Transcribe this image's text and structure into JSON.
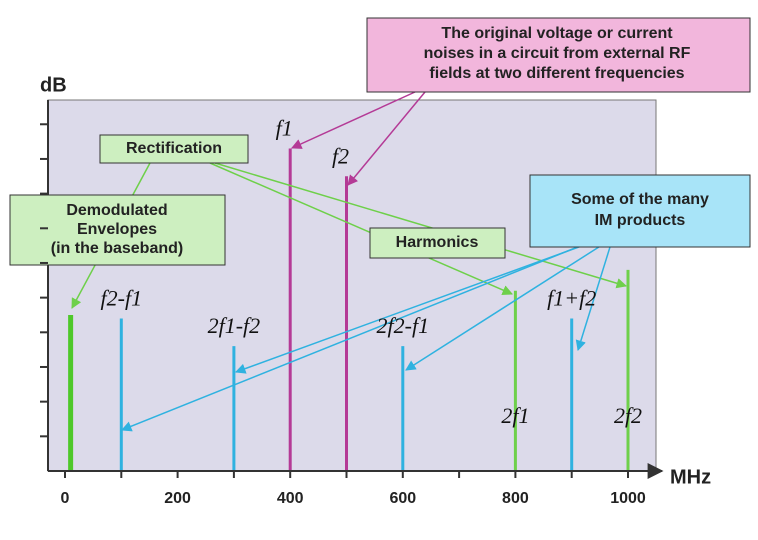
{
  "chart_data": {
    "type": "spectrum",
    "x_label": "MHz",
    "y_label": "dB",
    "x": [
      10,
      100,
      300,
      400,
      500,
      600,
      800,
      900,
      1000
    ],
    "values": [
      4.5,
      4.4,
      3.6,
      9.3,
      8.5,
      3.6,
      5.2,
      4.4,
      5.8
    ],
    "labels": [
      null,
      "f2-f1",
      "2f1-f2",
      "f1",
      "f2",
      "2f2-f1",
      "2f1",
      "f1+f2",
      "2f2"
    ],
    "colors": [
      "#4ec82a",
      "#2fb2e0",
      "#2fb2e0",
      "#b43a96",
      "#b43a96",
      "#2fb2e0",
      "#6ed04a",
      "#2fb2e0",
      "#6ed04a"
    ],
    "xlim": [
      0,
      1000
    ],
    "xticks": [
      0,
      200,
      400,
      600,
      800,
      1000
    ],
    "ylim": [
      0,
      10.7
    ],
    "yticks": [
      1,
      2,
      3,
      4,
      5,
      6,
      7,
      8,
      9,
      10
    ],
    "annotations": [
      {
        "lines": [
          "The original voltage or current",
          "noises in a circuit from external RF",
          "fields at two different frequencies"
        ]
      },
      {
        "lines": [
          "Rectification"
        ]
      },
      {
        "lines": [
          "Demodulated",
          "Envelopes",
          "(in the baseband)"
        ]
      },
      {
        "lines": [
          "Harmonics"
        ]
      },
      {
        "lines": [
          "Some of the many",
          "IM products"
        ]
      }
    ]
  }
}
